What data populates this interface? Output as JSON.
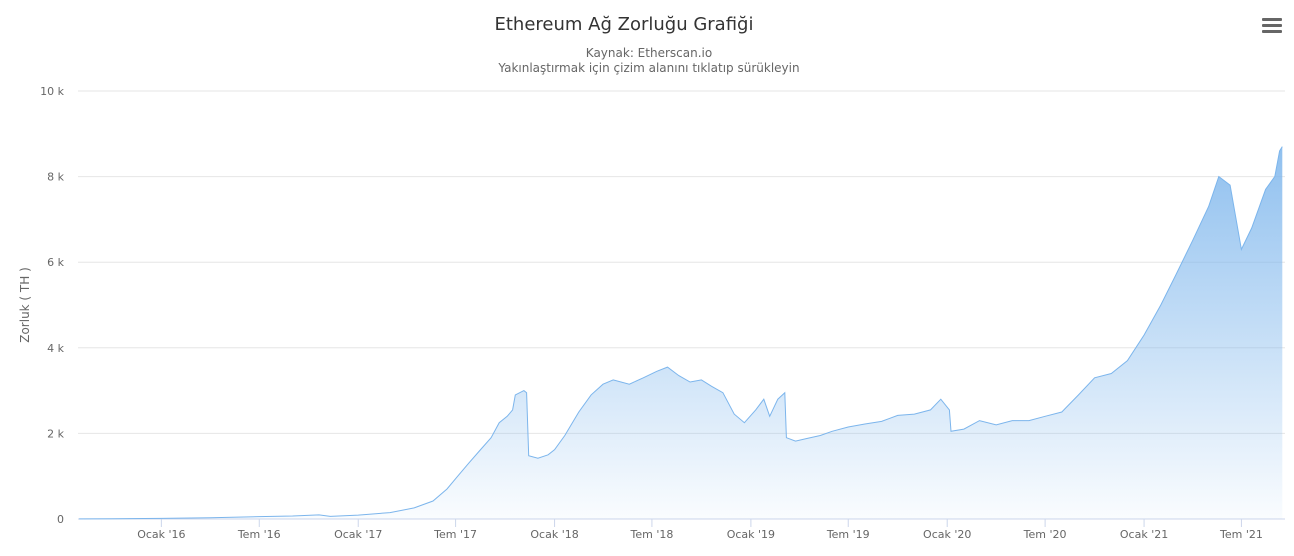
{
  "chart_data": {
    "type": "area",
    "title": "Ethereum Ağ Zorluğu Grafiği",
    "subtitle": [
      "Kaynak: Etherscan.io",
      "Yakınlaştırmak için çizim alanını tıklatıp sürükleyin"
    ],
    "ylabel": "Zorluk ( TH )",
    "xlabel": "",
    "ylim": [
      0,
      10000
    ],
    "y_ticks": [
      {
        "value": 0,
        "label": "0"
      },
      {
        "value": 2000,
        "label": "2 k"
      },
      {
        "value": 4000,
        "label": "4 k"
      },
      {
        "value": 6000,
        "label": "6 k"
      },
      {
        "value": 8000,
        "label": "8 k"
      },
      {
        "value": 10000,
        "label": "10 k"
      }
    ],
    "x_range": [
      "2015-07-30",
      "2021-09-20"
    ],
    "x_ticks": [
      {
        "date": "2016-01-01",
        "label": "Ocak '16"
      },
      {
        "date": "2016-07-01",
        "label": "Tem '16"
      },
      {
        "date": "2017-01-01",
        "label": "Ocak '17"
      },
      {
        "date": "2017-07-01",
        "label": "Tem '17"
      },
      {
        "date": "2018-01-01",
        "label": "Ocak '18"
      },
      {
        "date": "2018-07-01",
        "label": "Tem '18"
      },
      {
        "date": "2019-01-01",
        "label": "Ocak '19"
      },
      {
        "date": "2019-07-01",
        "label": "Tem '19"
      },
      {
        "date": "2020-01-01",
        "label": "Ocak '20"
      },
      {
        "date": "2020-07-01",
        "label": "Tem '20"
      },
      {
        "date": "2021-01-01",
        "label": "Ocak '21"
      },
      {
        "date": "2021-07-01",
        "label": "Tem '21"
      }
    ],
    "grid": true,
    "legend": "none",
    "series": [
      {
        "color": "#7cb5ec",
        "points": [
          [
            "2015-08-01",
            2
          ],
          [
            "2015-10-01",
            6
          ],
          [
            "2016-01-01",
            15
          ],
          [
            "2016-04-01",
            30
          ],
          [
            "2016-07-01",
            55
          ],
          [
            "2016-09-01",
            70
          ],
          [
            "2016-10-20",
            95
          ],
          [
            "2016-11-10",
            60
          ],
          [
            "2017-01-01",
            90
          ],
          [
            "2017-03-01",
            150
          ],
          [
            "2017-04-15",
            260
          ],
          [
            "2017-05-20",
            420
          ],
          [
            "2017-06-15",
            700
          ],
          [
            "2017-07-05",
            1000
          ],
          [
            "2017-07-25",
            1300
          ],
          [
            "2017-08-15",
            1600
          ],
          [
            "2017-09-05",
            1900
          ],
          [
            "2017-09-20",
            2250
          ],
          [
            "2017-10-05",
            2400
          ],
          [
            "2017-10-15",
            2550
          ],
          [
            "2017-10-20",
            2900
          ],
          [
            "2017-11-05",
            3000
          ],
          [
            "2017-11-10",
            2950
          ],
          [
            "2017-11-14",
            1480
          ],
          [
            "2017-12-01",
            1420
          ],
          [
            "2017-12-20",
            1500
          ],
          [
            "2018-01-01",
            1620
          ],
          [
            "2018-01-20",
            1950
          ],
          [
            "2018-02-15",
            2500
          ],
          [
            "2018-03-10",
            2900
          ],
          [
            "2018-04-01",
            3150
          ],
          [
            "2018-04-20",
            3250
          ],
          [
            "2018-05-20",
            3150
          ],
          [
            "2018-06-15",
            3300
          ],
          [
            "2018-07-10",
            3450
          ],
          [
            "2018-07-30",
            3550
          ],
          [
            "2018-08-20",
            3350
          ],
          [
            "2018-09-10",
            3200
          ],
          [
            "2018-10-01",
            3250
          ],
          [
            "2018-10-20",
            3100
          ],
          [
            "2018-11-10",
            2950
          ],
          [
            "2018-12-01",
            2450
          ],
          [
            "2018-12-20",
            2250
          ],
          [
            "2019-01-10",
            2550
          ],
          [
            "2019-01-25",
            2800
          ],
          [
            "2019-02-05",
            2400
          ],
          [
            "2019-02-20",
            2800
          ],
          [
            "2019-03-05",
            2950
          ],
          [
            "2019-03-08",
            1900
          ],
          [
            "2019-03-25",
            1820
          ],
          [
            "2019-04-15",
            1880
          ],
          [
            "2019-05-10",
            1950
          ],
          [
            "2019-06-01",
            2050
          ],
          [
            "2019-07-01",
            2150
          ],
          [
            "2019-08-01",
            2220
          ],
          [
            "2019-09-01",
            2280
          ],
          [
            "2019-10-01",
            2420
          ],
          [
            "2019-11-01",
            2450
          ],
          [
            "2019-12-01",
            2550
          ],
          [
            "2019-12-20",
            2800
          ],
          [
            "2020-01-05",
            2550
          ],
          [
            "2020-01-08",
            2050
          ],
          [
            "2020-02-01",
            2100
          ],
          [
            "2020-03-01",
            2300
          ],
          [
            "2020-04-01",
            2200
          ],
          [
            "2020-05-01",
            2300
          ],
          [
            "2020-06-01",
            2300
          ],
          [
            "2020-07-01",
            2400
          ],
          [
            "2020-08-01",
            2500
          ],
          [
            "2020-09-01",
            2900
          ],
          [
            "2020-10-01",
            3300
          ],
          [
            "2020-11-01",
            3400
          ],
          [
            "2020-12-01",
            3700
          ],
          [
            "2021-01-01",
            4300
          ],
          [
            "2021-02-01",
            5000
          ],
          [
            "2021-03-01",
            5700
          ],
          [
            "2021-04-01",
            6500
          ],
          [
            "2021-05-01",
            7300
          ],
          [
            "2021-05-20",
            8000
          ],
          [
            "2021-06-10",
            7800
          ],
          [
            "2021-07-01",
            6300
          ],
          [
            "2021-07-20",
            6800
          ],
          [
            "2021-08-15",
            7700
          ],
          [
            "2021-09-01",
            8000
          ],
          [
            "2021-09-10",
            8600
          ],
          [
            "2021-09-15",
            8700
          ]
        ]
      }
    ]
  }
}
